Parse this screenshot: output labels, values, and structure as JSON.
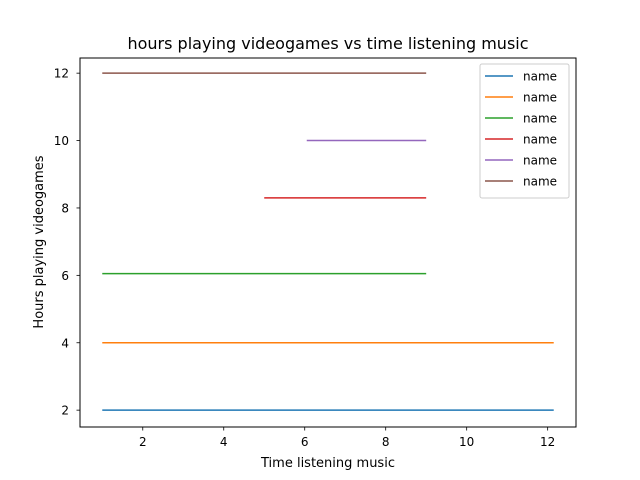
{
  "chart_data": {
    "type": "line",
    "title": "hours playing videogames vs time listening music",
    "xlabel": "Time listening music",
    "ylabel": "Hours playing videogames",
    "xlim": [
      0.45,
      12.7
    ],
    "ylim": [
      1.5,
      12.45
    ],
    "xticks": [
      2,
      4,
      6,
      8,
      10,
      12
    ],
    "yticks": [
      2,
      4,
      6,
      8,
      10,
      12
    ],
    "grid": false,
    "legend_position": "top-right",
    "series": [
      {
        "name": "name",
        "color": "#1f77b4",
        "x": [
          1.0,
          12.15
        ],
        "y": [
          2.0,
          2.0
        ]
      },
      {
        "name": "name",
        "color": "#ff7f0e",
        "x": [
          1.0,
          12.15
        ],
        "y": [
          4.0,
          4.0
        ]
      },
      {
        "name": "name",
        "color": "#2ca02c",
        "x": [
          1.0,
          9.0
        ],
        "y": [
          6.05,
          6.05
        ]
      },
      {
        "name": "name",
        "color": "#d62728",
        "x": [
          5.0,
          9.0
        ],
        "y": [
          8.3,
          8.3
        ]
      },
      {
        "name": "name",
        "color": "#9467bd",
        "x": [
          6.05,
          9.0
        ],
        "y": [
          10.0,
          10.0
        ]
      },
      {
        "name": "name",
        "color": "#8c564b",
        "x": [
          1.0,
          9.0
        ],
        "y": [
          12.0,
          12.0
        ]
      }
    ]
  }
}
